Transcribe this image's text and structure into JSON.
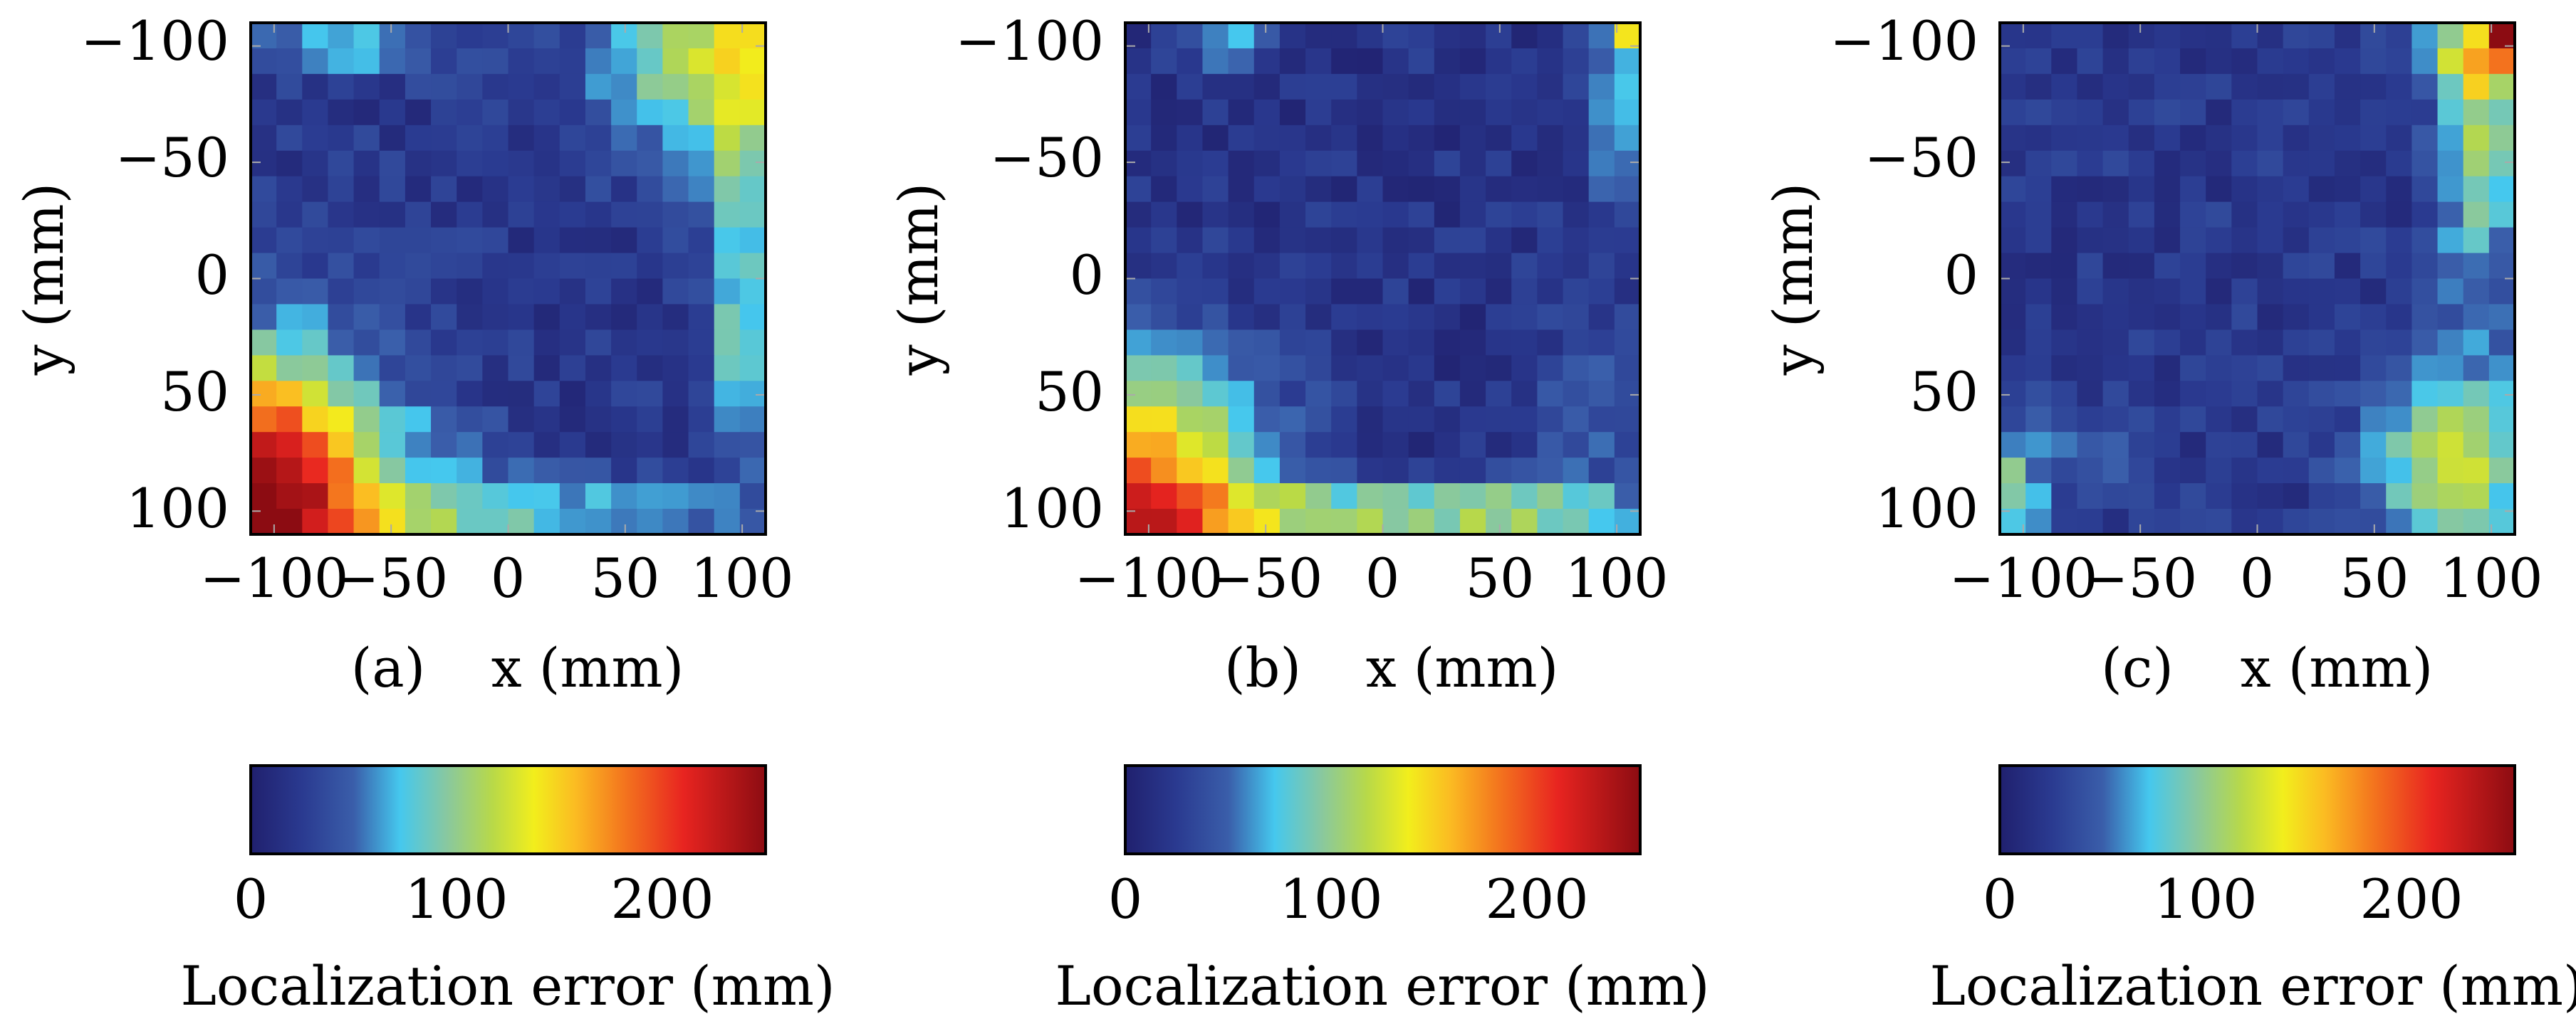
{
  "chart_data": [
    {
      "type": "heatmap",
      "panel_label": "(a)",
      "xlabel": "x (mm)",
      "ylabel": "y (mm)",
      "xlim": [
        -110,
        110
      ],
      "ylim": [
        -110,
        110
      ],
      "y_inverted": true,
      "xticks": [
        -100,
        -50,
        0,
        50,
        100
      ],
      "yticks": [
        -100,
        -50,
        0,
        50,
        100
      ],
      "xtick_labels": [
        "−100",
        "−50",
        "0",
        "50",
        "100"
      ],
      "ytick_labels": [
        "−100",
        "−50",
        "0",
        "50",
        "100"
      ],
      "grid_size": 20,
      "cell_extent": [
        -110,
        110
      ],
      "colorbar": {
        "label": "Localization error (mm)",
        "range": [
          0,
          250
        ],
        "ticks": [
          0,
          100,
          200
        ],
        "tick_labels": [
          "0",
          "100",
          "200"
        ]
      },
      "values_description": "Localization error in mm over the grid; high errors concentrated along the left edge (y>0), the bottom edge and the top-right corner; low errors in the center."
    },
    {
      "type": "heatmap",
      "panel_label": "(b)",
      "xlabel": "x (mm)",
      "ylabel": "y (mm)",
      "xlim": [
        -110,
        110
      ],
      "ylim": [
        -110,
        110
      ],
      "y_inverted": true,
      "xticks": [
        -100,
        -50,
        0,
        50,
        100
      ],
      "yticks": [
        -100,
        -50,
        0,
        50,
        100
      ],
      "xtick_labels": [
        "−100",
        "−50",
        "0",
        "50",
        "100"
      ],
      "ytick_labels": [
        "−100",
        "−50",
        "0",
        "50",
        "100"
      ],
      "grid_size": 20,
      "cell_extent": [
        -110,
        110
      ],
      "colorbar": {
        "label": "Localization error (mm)",
        "range": [
          0,
          250
        ],
        "ticks": [
          0,
          100,
          200
        ],
        "tick_labels": [
          "0",
          "100",
          "200"
        ]
      },
      "values_description": "Localization error in mm; mostly low, with high errors in the bottom-left region and along the bottom edge, small elevated spots at the top-right."
    },
    {
      "type": "heatmap",
      "panel_label": "(c)",
      "xlabel": "x (mm)",
      "ylabel": "y (mm)",
      "xlim": [
        -110,
        110
      ],
      "ylim": [
        -110,
        110
      ],
      "y_inverted": true,
      "xticks": [
        -100,
        -50,
        0,
        50,
        100
      ],
      "yticks": [
        -100,
        -50,
        0,
        50,
        100
      ],
      "xtick_labels": [
        "−100",
        "−50",
        "0",
        "50",
        "100"
      ],
      "ytick_labels": [
        "−100",
        "−50",
        "0",
        "50",
        "100"
      ],
      "grid_size": 20,
      "cell_extent": [
        -110,
        110
      ],
      "colorbar": {
        "label": "Localization error (mm)",
        "range": [
          0,
          250
        ],
        "ticks": [
          0,
          100,
          200
        ],
        "tick_labels": [
          "0",
          "100",
          "200"
        ]
      },
      "values_description": "Localization error in mm; mostly low, with moderate errors along the right edge, top-right corner and bottom-left / bottom-right corners."
    }
  ],
  "colormap": [
    "#20206e",
    "#3a5eaa",
    "#45c8ee",
    "#88c8a0",
    "#b8d948",
    "#f2ee1c",
    "#fbbc22",
    "#f4791e",
    "#e82420",
    "#8c0c12"
  ]
}
